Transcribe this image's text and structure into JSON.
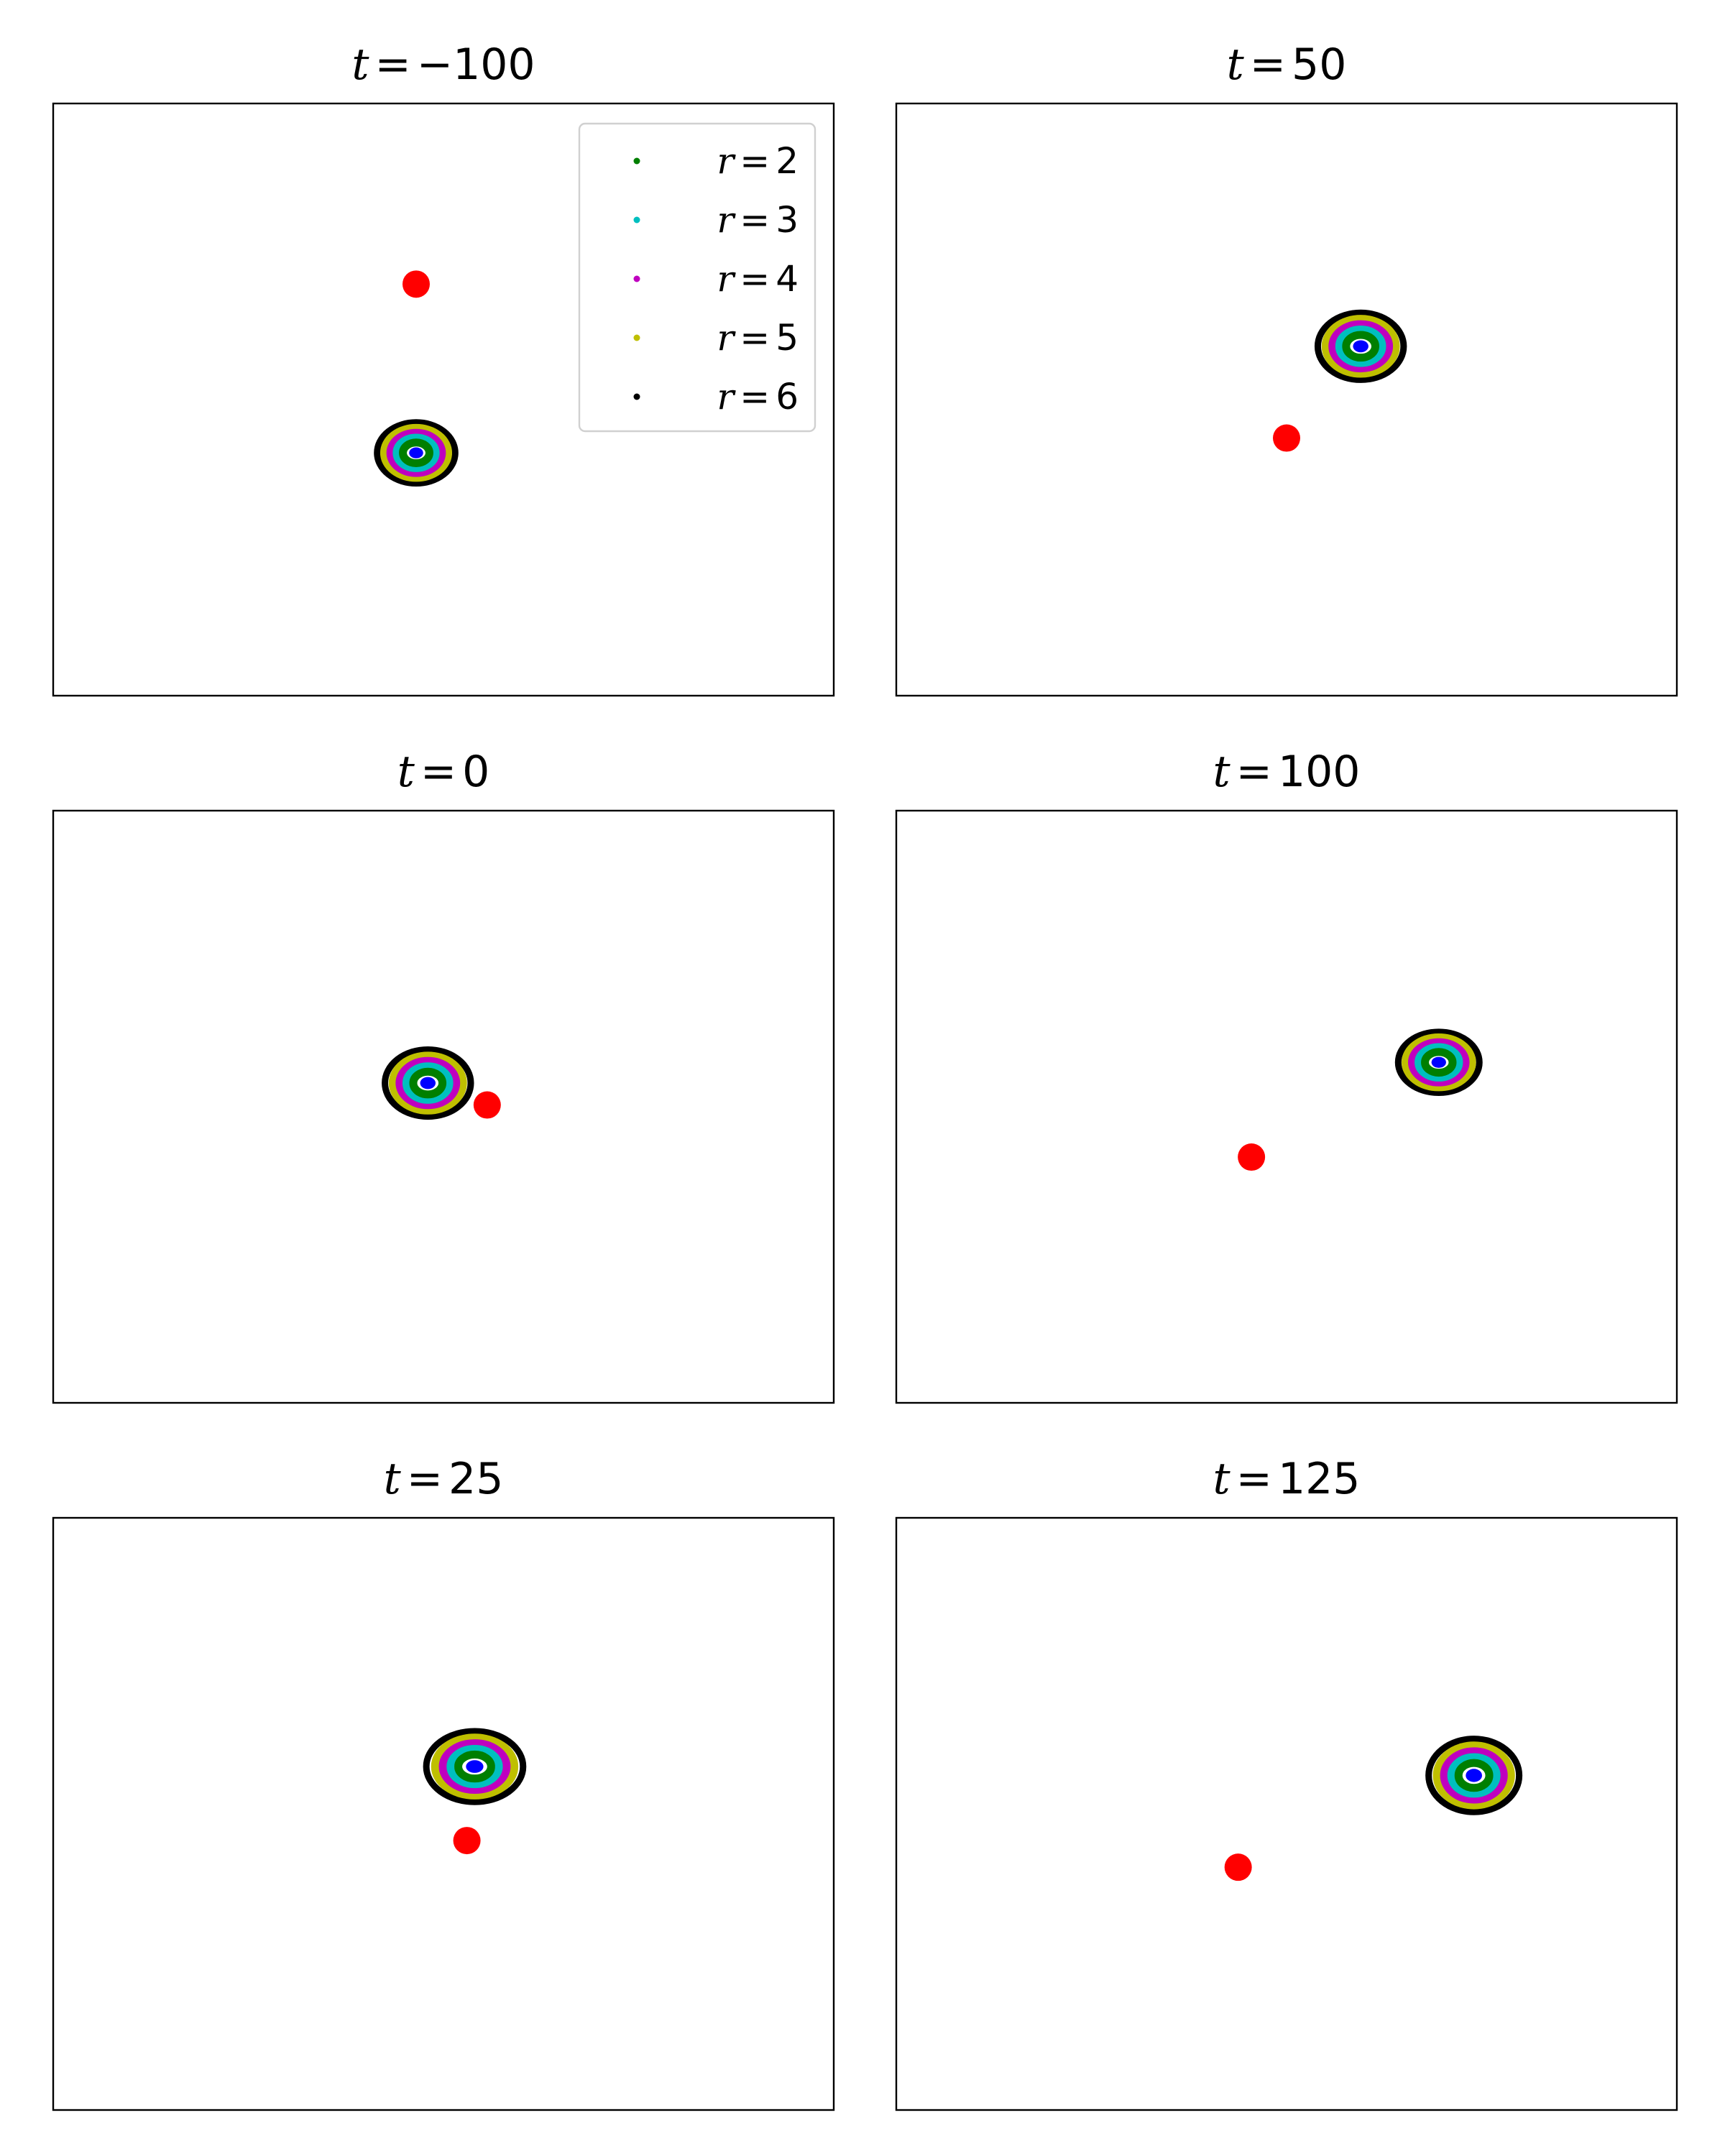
{
  "chart_data": {
    "type": "scatter",
    "layout": {
      "rows": 3,
      "cols": 2
    },
    "legend": {
      "placement": "upper-right",
      "entries": [
        {
          "var": "r",
          "op": "=",
          "value": "2",
          "color": "#007f00"
        },
        {
          "var": "r",
          "op": "=",
          "value": "3",
          "color": "#00bfbf"
        },
        {
          "var": "r",
          "op": "=",
          "value": "4",
          "color": "#bf00bf"
        },
        {
          "var": "r",
          "op": "=",
          "value": "5",
          "color": "#bfbf00"
        },
        {
          "var": "r",
          "op": "=",
          "value": "6",
          "color": "#000000"
        }
      ]
    },
    "marker_color": "#ff0000",
    "core_color": "#0000ff",
    "xlim": [
      0,
      1
    ],
    "ylim": [
      0,
      1
    ],
    "grid": false,
    "panels": [
      {
        "t_var": "t",
        "t_op": "=",
        "t_value": "−100",
        "cluster": {
          "cx": 0.465,
          "cy": 0.41,
          "rx": 0.05,
          "ry": 0.05
        },
        "marker": {
          "x": 0.465,
          "y": 0.695
        }
      },
      {
        "t_var": "t",
        "t_op": "=",
        "t_value": "50",
        "cluster": {
          "cx": 0.595,
          "cy": 0.59,
          "rx": 0.055,
          "ry": 0.055
        },
        "marker": {
          "x": 0.5,
          "y": 0.435
        }
      },
      {
        "t_var": "t",
        "t_op": "=",
        "t_value": "0",
        "cluster": {
          "cx": 0.48,
          "cy": 0.54,
          "rx": 0.055,
          "ry": 0.055
        },
        "marker": {
          "x": 0.556,
          "y": 0.503
        }
      },
      {
        "t_var": "t",
        "t_op": "=",
        "t_value": "100",
        "cluster": {
          "cx": 0.695,
          "cy": 0.575,
          "rx": 0.052,
          "ry": 0.05
        },
        "marker": {
          "x": 0.455,
          "y": 0.415
        }
      },
      {
        "t_var": "t",
        "t_op": "=",
        "t_value": "25",
        "cluster": {
          "cx": 0.54,
          "cy": 0.58,
          "rx": 0.062,
          "ry": 0.058
        },
        "marker": {
          "x": 0.53,
          "y": 0.455
        }
      },
      {
        "t_var": "t",
        "t_op": "=",
        "t_value": "125",
        "cluster": {
          "cx": 0.74,
          "cy": 0.565,
          "rx": 0.058,
          "ry": 0.06
        },
        "marker": {
          "x": 0.438,
          "y": 0.41
        }
      }
    ]
  }
}
